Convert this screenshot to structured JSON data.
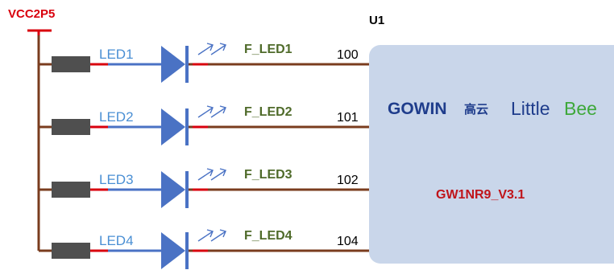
{
  "power": {
    "label": "VCC2P5",
    "color": "#d9000d"
  },
  "chip": {
    "ref": "U1",
    "part": "GW1NR9_V3.1",
    "logo": {
      "brand": "GOWIN",
      "brand_cn": "高云",
      "product_a": "Little",
      "product_b": "Bee"
    },
    "fill": "#c9d6ea"
  },
  "leds": [
    {
      "name": "LED1",
      "net": "F_LED1",
      "pin": "100"
    },
    {
      "name": "LED2",
      "net": "F_LED2",
      "pin": "101"
    },
    {
      "name": "LED3",
      "net": "F_LED3",
      "pin": "102"
    },
    {
      "name": "LED4",
      "net": "F_LED4",
      "pin": "104"
    }
  ],
  "colors": {
    "wire": "#7a3c1e",
    "diode": "#4a72c4",
    "led_label": "#4a8fd4",
    "net_label": "#4f6b2a",
    "resistor": "#4f4f4f",
    "pin_mark": "#d9000d",
    "part_label": "#c0141a",
    "logo_blue": "#1f3d8c",
    "logo_green": "#3ea83a"
  }
}
